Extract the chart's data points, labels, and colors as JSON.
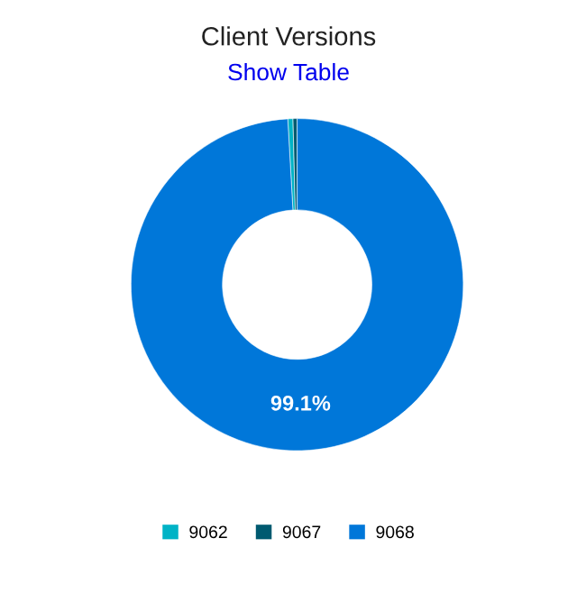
{
  "chart_data": {
    "type": "donut",
    "title": "Client Versions",
    "subtitle": "Show Table",
    "categories": [
      "9062",
      "9067",
      "9068"
    ],
    "values": [
      0.5,
      0.4,
      99.1
    ],
    "colors": [
      "#00b3c6",
      "#005a70",
      "#0077d9"
    ],
    "value_labels": [
      null,
      null,
      "99.1%"
    ],
    "legend": "bottom"
  }
}
